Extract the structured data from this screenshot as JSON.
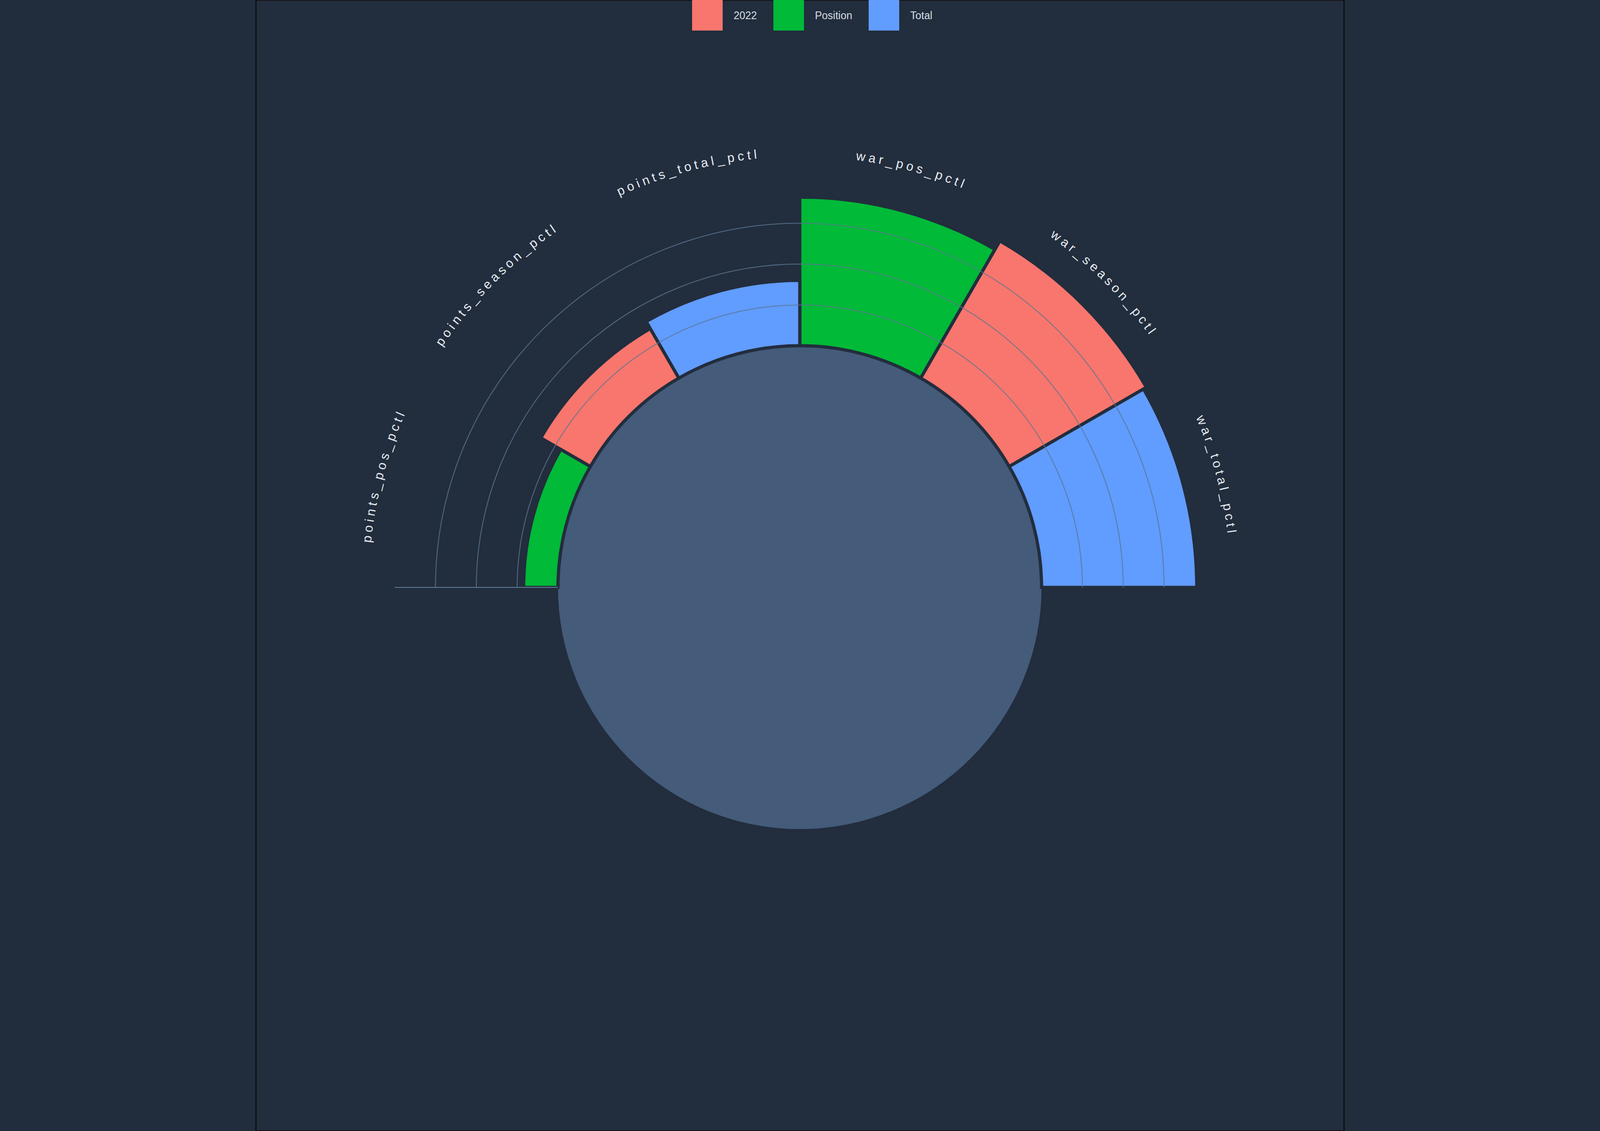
{
  "chart_data": {
    "type": "radial_bar",
    "categories": [
      "points_pos_pctl",
      "points_season_pctl",
      "points_total_pctl",
      "war_pos_pctl",
      "war_season_pctl",
      "war_total_pctl"
    ],
    "series": [
      {
        "name": "2022",
        "color": "#f8766d",
        "values": [
          null,
          35,
          null,
          null,
          97,
          null
        ]
      },
      {
        "name": "Position",
        "color": "#00ba38",
        "values": [
          21,
          null,
          null,
          91,
          null,
          null
        ]
      },
      {
        "name": "Total",
        "color": "#619cff",
        "values": [
          null,
          null,
          40,
          null,
          null,
          95
        ]
      }
    ],
    "ylim": [
      0,
      100
    ],
    "yticks": [
      25,
      50,
      75
    ],
    "grid": true,
    "legend": "top",
    "tick_labels": false
  }
}
